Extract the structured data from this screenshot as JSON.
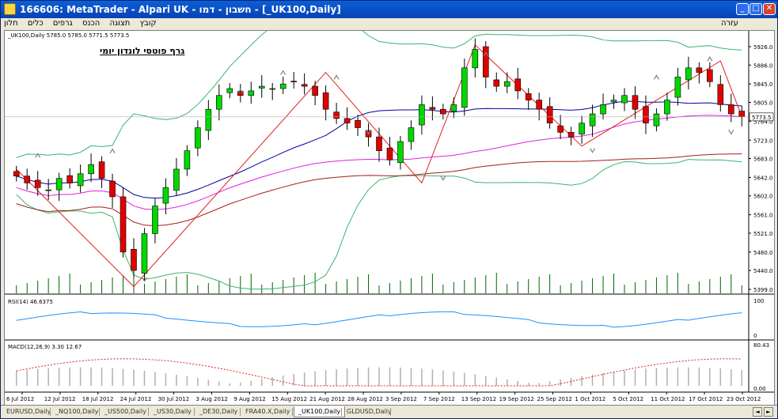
{
  "window": {
    "title": "166606: MetaTrader - Alpari UK - חשבון - דמו - [_UK100,Daily]"
  },
  "menu": {
    "items": [
      "קובץ",
      "תצוגה",
      "הכנס",
      "גרפים",
      "כלים",
      "חלון"
    ],
    "help": "עזרה"
  },
  "chart": {
    "symbol_header": "_UK100,Daily  5785.0 5785.0 5771.5 5773.5",
    "annotation": "גרף פוטסי לונדון יומי",
    "current_price": "5773.5",
    "price_ticks": [
      "5926.0",
      "5886.0",
      "5845.0",
      "5805.0",
      "5764.0",
      "5723.0",
      "5683.0",
      "5642.0",
      "5602.0",
      "5561.0",
      "5521.0",
      "5480.0",
      "5440.0",
      "5399.0"
    ],
    "date_ticks": [
      "6 Jul 2012",
      "12 Jul 2012",
      "18 Jul 2012",
      "24 Jul 2012",
      "30 Jul 2012",
      "3 Aug 2012",
      "9 Aug 2012",
      "15 Aug 2012",
      "21 Aug 2012",
      "28 Aug 2012",
      "3 Sep 2012",
      "7 Sep 2012",
      "13 Sep 2012",
      "19 Sep 2012",
      "25 Sep 2012",
      "1 Oct 2012",
      "5 Oct 2012",
      "11 Oct 2012",
      "17 Oct 2012",
      "23 Oct 2012"
    ],
    "up_color": "#00d800",
    "down_color": "#e00000"
  },
  "rsi": {
    "label": "RSI(14) 46.6375",
    "ticks": [
      "100",
      "0"
    ]
  },
  "macd": {
    "label": "MACD(12,26,9) 3.30 12.67",
    "ticks": [
      "80.43",
      "0.00"
    ]
  },
  "tabs": [
    "EURUSD,Daily",
    "_NQ100,Daily",
    "_US500,Daily",
    "_US30,Daily",
    "_DE30,Daily",
    "FRA40.X,Daily",
    "_UK100,Daily",
    "GLDUSD,Daily"
  ],
  "active_tab": "_UK100,Daily",
  "chart_data": {
    "type": "candlestick",
    "symbol": "_UK100",
    "timeframe": "Daily",
    "ohlc_last": {
      "open": 5785.0,
      "high": 5785.0,
      "low": 5771.5,
      "close": 5773.5
    },
    "ylim": [
      5399.0,
      5926.0
    ],
    "close_series": [
      5645,
      5630,
      5620,
      5615,
      5640,
      5630,
      5650,
      5670,
      5640,
      5600,
      5480,
      5440,
      5520,
      5580,
      5620,
      5660,
      5700,
      5750,
      5790,
      5820,
      5835,
      5820,
      5830,
      5840,
      5835,
      5845,
      5850,
      5840,
      5820,
      5790,
      5770,
      5760,
      5750,
      5730,
      5700,
      5680,
      5720,
      5750,
      5800,
      5790,
      5780,
      5800,
      5880,
      5920,
      5860,
      5840,
      5850,
      5830,
      5810,
      5790,
      5760,
      5740,
      5730,
      5760,
      5780,
      5800,
      5810,
      5820,
      5790,
      5760,
      5780,
      5810,
      5860,
      5880,
      5870,
      5850,
      5800,
      5780,
      5774
    ]
  }
}
